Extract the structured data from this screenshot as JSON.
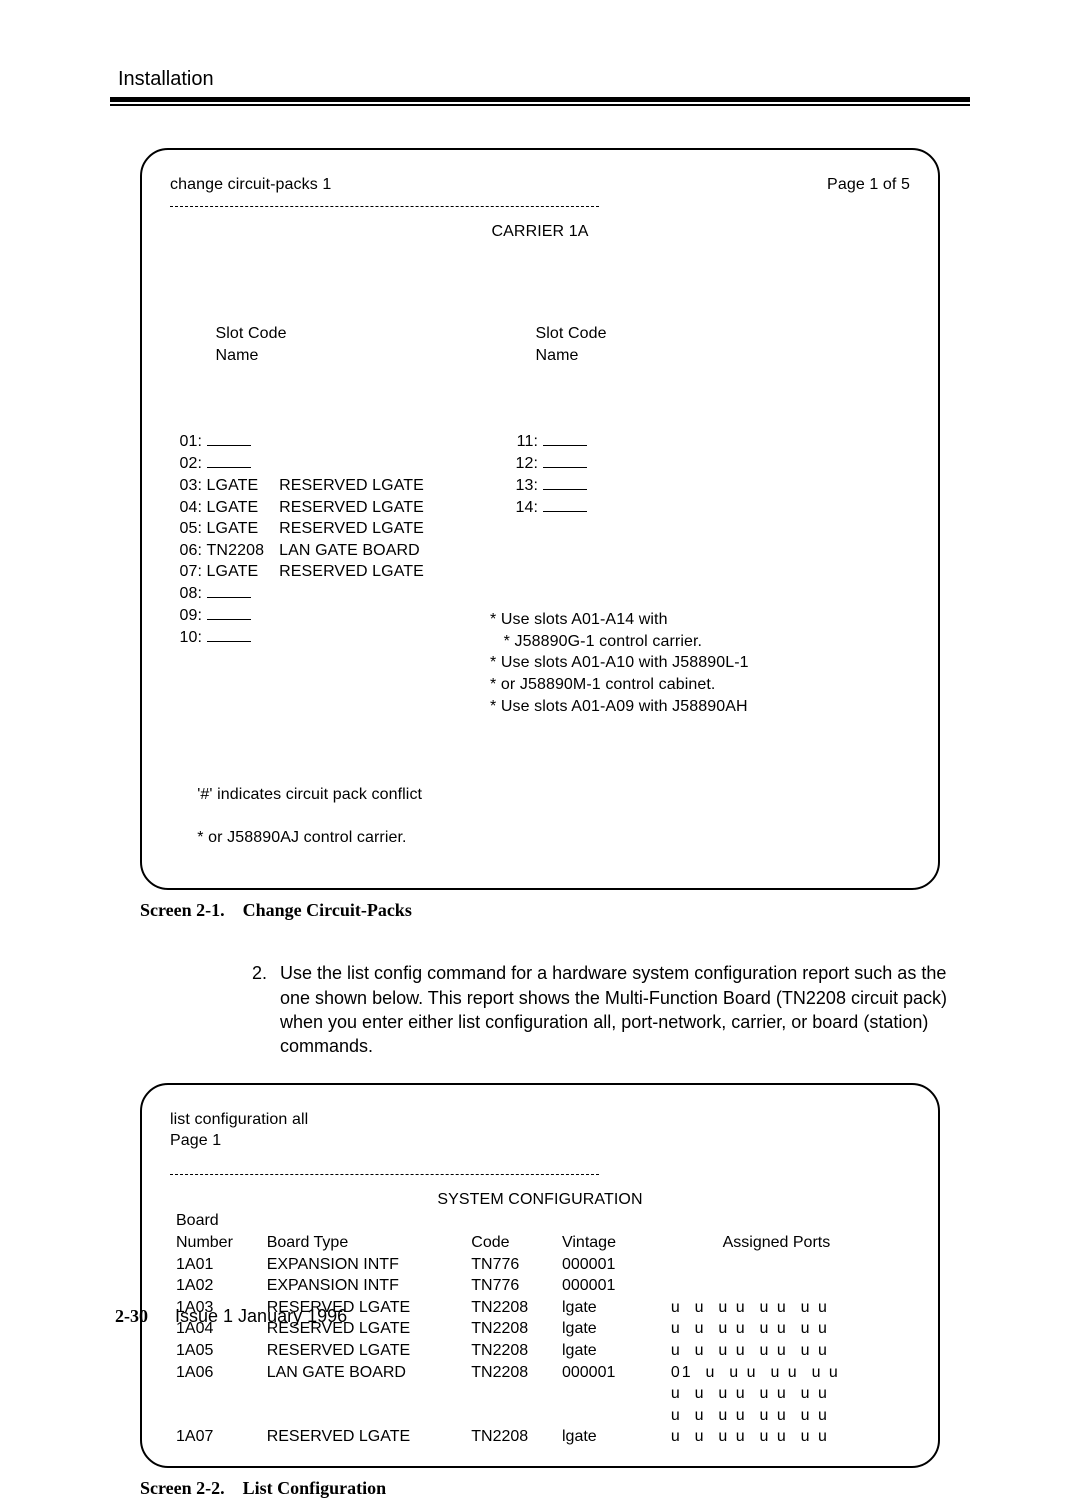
{
  "header": {
    "section_title": "Installation"
  },
  "screen1": {
    "cmd_line": "change circuit-packs 1",
    "page_label": "Page 1 of 5",
    "carrier_label": "CARRIER 1A",
    "left_header_slot": "Slot Code",
    "left_header_name": "Name",
    "right_header_slot": "Slot Code",
    "right_header_name": "Name",
    "left_rows": [
      {
        "slot": "01:",
        "code": "",
        "name": ""
      },
      {
        "slot": "02:",
        "code": "",
        "name": ""
      },
      {
        "slot": "03:",
        "code": "LGATE",
        "name": "RESERVED LGATE"
      },
      {
        "slot": "04:",
        "code": "LGATE",
        "name": "RESERVED LGATE"
      },
      {
        "slot": "05:",
        "code": "LGATE",
        "name": "RESERVED LGATE"
      },
      {
        "slot": "06:",
        "code": "TN2208",
        "name": "LAN GATE BOARD"
      },
      {
        "slot": "07:",
        "code": "LGATE",
        "name": "RESERVED LGATE"
      },
      {
        "slot": "08:",
        "code": "",
        "name": ""
      },
      {
        "slot": "09:",
        "code": "",
        "name": ""
      },
      {
        "slot": "10:",
        "code": "",
        "name": ""
      }
    ],
    "right_rows": [
      {
        "slot": "11:"
      },
      {
        "slot": "12:"
      },
      {
        "slot": "13:"
      },
      {
        "slot": "14:"
      }
    ],
    "notes": [
      "* Use slots A01-A14 with",
      "   * J58890G-1 control carrier.",
      "* Use slots A01-A10 with J58890L-1",
      "* or J58890M-1 control cabinet.",
      "* Use slots A01-A09 with J58890AH"
    ],
    "footer_left": "'#' indicates circuit pack conflict",
    "footer_right": "* or J58890AJ control carrier.",
    "caption_label": "Screen 2-1.",
    "caption_text": "Change Circuit-Packs"
  },
  "instruction": {
    "number": "2.",
    "text_a": "Use the ",
    "cmd1": "list config",
    "text_b": " command for a hardware system configuration report such as the one shown below. This report shows the Multi-Function Board (TN2208 circuit pack) when you enter either ",
    "cmd2": "list configuration all, port-network, carrier,",
    "text_c": " or ",
    "cmd3": "board",
    "text_d": " (station) commands."
  },
  "screen2": {
    "cmd_line": "list configuration all",
    "page_label": "Page 1",
    "title": "SYSTEM CONFIGURATION",
    "header_prefix": "Board",
    "columns": [
      "Number",
      "Board Type",
      "Code",
      "Vintage",
      "Assigned Ports"
    ],
    "rows": [
      {
        "num": "1A01",
        "type": "EXPANSION INTF",
        "code": "TN776",
        "vintage": "000001",
        "ports": ""
      },
      {
        "num": "1A02",
        "type": "EXPANSION INTF",
        "code": "TN776",
        "vintage": "000001",
        "ports": ""
      },
      {
        "num": "1A03",
        "type": "RESERVED LGATE",
        "code": "TN2208",
        "vintage": "lgate",
        "ports": "u  u  u u  u u  u u"
      },
      {
        "num": "1A04",
        "type": "RESERVED LGATE",
        "code": "TN2208",
        "vintage": "lgate",
        "ports": "u  u  u u  u u  u u"
      },
      {
        "num": "1A05",
        "type": "RESERVED LGATE",
        "code": "TN2208",
        "vintage": "lgate",
        "ports": "u  u  u u  u u  u u"
      },
      {
        "num": "1A06",
        "type": "LAN GATE BOARD",
        "code": "TN2208",
        "vintage": "000001",
        "ports": "01  u  u u  u u  u u"
      },
      {
        "num": "",
        "type": "",
        "code": "",
        "vintage": "",
        "ports": "u  u  u u  u u  u u"
      },
      {
        "num": "",
        "type": "",
        "code": "",
        "vintage": "",
        "ports": "u  u  u u  u u  u u"
      },
      {
        "num": "1A07",
        "type": "RESERVED LGATE",
        "code": "TN2208",
        "vintage": "lgate",
        "ports": "u  u  u u  u u  u u"
      }
    ],
    "caption_label": "Screen 2-2.",
    "caption_text": "List Configuration"
  },
  "footer": {
    "page_number": "2-30",
    "issue_text": "Issue 1  January 1996"
  }
}
